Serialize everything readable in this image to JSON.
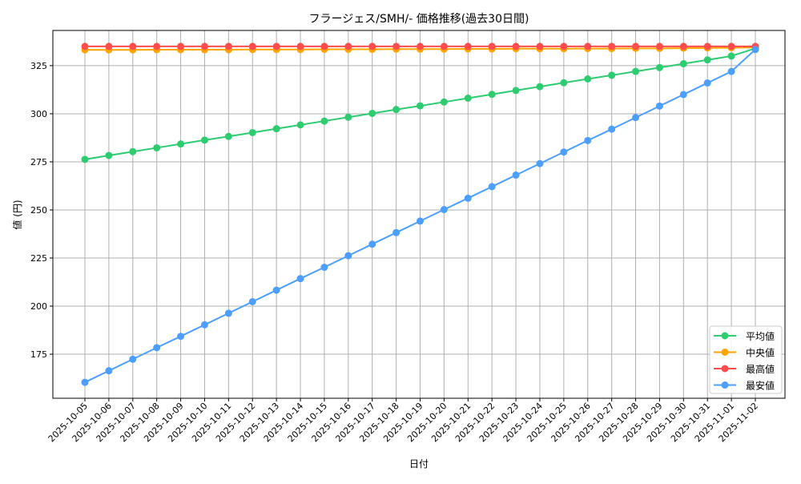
{
  "chart_data": {
    "type": "line",
    "title": "フラージェス/SMH/- 価格推移(過去30日間)",
    "xlabel": "日付",
    "ylabel": "値 (円)",
    "ylim": [
      152.1,
      343.3
    ],
    "yticks": [
      175,
      200,
      225,
      250,
      275,
      300,
      325
    ],
    "grid": true,
    "legend_position": "lower-right",
    "x": [
      "2025-10-05",
      "2025-10-06",
      "2025-10-07",
      "2025-10-08",
      "2025-10-09",
      "2025-10-10",
      "2025-10-11",
      "2025-10-12",
      "2025-10-13",
      "2025-10-14",
      "2025-10-15",
      "2025-10-16",
      "2025-10-17",
      "2025-10-18",
      "2025-10-19",
      "2025-10-20",
      "2025-10-21",
      "2025-10-22",
      "2025-10-23",
      "2025-10-24",
      "2025-10-25",
      "2025-10-26",
      "2025-10-27",
      "2025-10-28",
      "2025-10-29",
      "2025-10-30",
      "2025-10-31",
      "2025-11-01",
      "2025-11-02"
    ],
    "series": [
      {
        "name": "平均値",
        "color": "#2ecc71",
        "values": [
          276.3,
          278.3,
          280.3,
          282.3,
          284.3,
          286.3,
          288.2,
          290.2,
          292.2,
          294.2,
          296.2,
          298.2,
          300.2,
          302.2,
          304.1,
          306.1,
          308.1,
          310.1,
          312.1,
          314.1,
          316.1,
          318.1,
          320.0,
          322.0,
          324.0,
          326.0,
          328.0,
          330.0,
          334.0
        ]
      },
      {
        "name": "中央値",
        "color": "#ffa500",
        "values": [
          333.2,
          333.2,
          333.2,
          333.3,
          333.3,
          333.3,
          333.3,
          333.4,
          333.4,
          333.4,
          333.5,
          333.5,
          333.5,
          333.6,
          333.6,
          333.6,
          333.7,
          333.7,
          333.8,
          333.8,
          333.8,
          333.9,
          333.9,
          334.0,
          334.0,
          334.1,
          334.2,
          334.3,
          334.5
        ]
      },
      {
        "name": "最高値",
        "color": "#ff4d4d",
        "values": [
          335,
          335,
          335,
          335,
          335,
          335,
          335,
          335,
          335,
          335,
          335,
          335,
          335,
          335,
          335,
          335,
          335,
          335,
          335,
          335,
          335,
          335,
          335,
          335,
          335,
          335,
          335,
          335,
          335
        ]
      },
      {
        "name": "最安値",
        "color": "#4d9fff",
        "values": [
          160.4,
          166.4,
          172.4,
          178.4,
          184.3,
          190.3,
          196.3,
          202.3,
          208.3,
          214.3,
          220.2,
          226.2,
          232.2,
          238.2,
          244.2,
          250.2,
          256.1,
          262.1,
          268.1,
          274.1,
          280.1,
          286.1,
          292.0,
          298.0,
          304.0,
          310.0,
          316.0,
          322.0,
          333.4
        ]
      }
    ]
  }
}
